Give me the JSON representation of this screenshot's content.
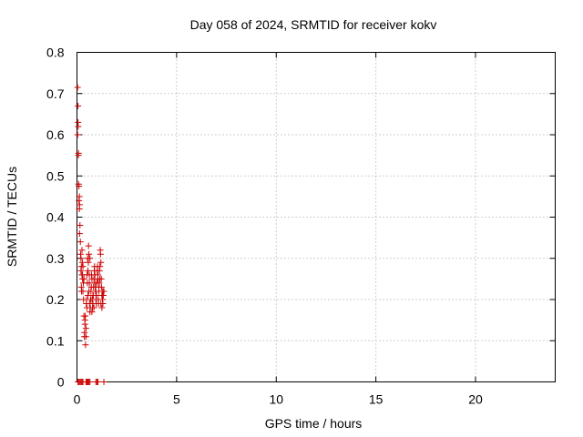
{
  "chart_data": {
    "type": "scatter",
    "title": "Day 058 of 2024, SRMTID for receiver kokv",
    "xlabel": "GPS time / hours",
    "ylabel": "SRMTID / TECUs",
    "xlim": [
      0,
      24
    ],
    "ylim": [
      0,
      0.8
    ],
    "xticks": [
      0,
      5,
      10,
      15,
      20
    ],
    "yticks": [
      0,
      0.1,
      0.2,
      0.3,
      0.4,
      0.5,
      0.6,
      0.7,
      0.8
    ],
    "xtick_labels": [
      "0",
      "5",
      "10",
      "15",
      "20"
    ],
    "ytick_labels": [
      "0",
      "0.1",
      "0.2",
      "0.3",
      "0.4",
      "0.5",
      "0.6",
      "0.7",
      "0.8"
    ],
    "grid": true,
    "marker": "+",
    "marker_color": "#cc0000",
    "series": [
      {
        "name": "SRMTID",
        "x": [
          0.03,
          0.05,
          0.06,
          0.08,
          0.1,
          0.12,
          0.13,
          0.15,
          0.17,
          0.18,
          0.2,
          0.22,
          0.23,
          0.25,
          0.27,
          0.28,
          0.3,
          0.32,
          0.33,
          0.35,
          0.37,
          0.38,
          0.4,
          0.42,
          0.43,
          0.45,
          0.47,
          0.48,
          0.5,
          0.52,
          0.53,
          0.55,
          0.57,
          0.58,
          0.6,
          0.62,
          0.63,
          0.65,
          0.67,
          0.68,
          0.7,
          0.72,
          0.73,
          0.75,
          0.77,
          0.78,
          0.8,
          0.82,
          0.83,
          0.85,
          0.87,
          0.88,
          0.9,
          0.92,
          0.93,
          0.95,
          0.97,
          0.98,
          1.0,
          1.02,
          1.03,
          1.05,
          1.07,
          1.08,
          1.1,
          1.12,
          1.13,
          1.15,
          1.17,
          1.18,
          1.2,
          1.22,
          1.23,
          1.25,
          1.27,
          1.28,
          1.3,
          1.32,
          1.33,
          1.35,
          0.03,
          0.05,
          0.07,
          0.08,
          0.1,
          0.12,
          0.13,
          0.2,
          0.22,
          0.25,
          0.28,
          0.3,
          0.35,
          0.4,
          0.45,
          0.5,
          0.55,
          0.6,
          0.62,
          0.65,
          0.7,
          0.75,
          0.8,
          0.85,
          0.9,
          0.95,
          1.0,
          1.05,
          1.1,
          1.15,
          1.2,
          1.25,
          1.3,
          0.05,
          0.1,
          0.15,
          0.2,
          0.25,
          0.3,
          0.45,
          0.5,
          0.55,
          0.6,
          0.65,
          0.95,
          1.0,
          1.05,
          1.35
        ],
        "y": [
          0.715,
          0.67,
          0.62,
          0.555,
          0.475,
          0.45,
          0.43,
          0.38,
          0.34,
          0.31,
          0.27,
          0.23,
          0.22,
          0.26,
          0.29,
          0.25,
          0.28,
          0.24,
          0.2,
          0.16,
          0.11,
          0.12,
          0.14,
          0.16,
          0.09,
          0.11,
          0.19,
          0.2,
          0.26,
          0.24,
          0.3,
          0.27,
          0.29,
          0.33,
          0.31,
          0.24,
          0.19,
          0.17,
          0.18,
          0.2,
          0.22,
          0.23,
          0.26,
          0.25,
          0.2,
          0.18,
          0.19,
          0.21,
          0.23,
          0.25,
          0.27,
          0.28,
          0.26,
          0.23,
          0.22,
          0.2,
          0.19,
          0.21,
          0.24,
          0.27,
          0.28,
          0.25,
          0.2,
          0.19,
          0.22,
          0.24,
          0.27,
          0.28,
          0.32,
          0.31,
          0.29,
          0.25,
          0.23,
          0.21,
          0.22,
          0.2,
          0.19,
          0.21,
          0.22,
          0.22,
          0.6,
          0.63,
          0.55,
          0.48,
          0.44,
          0.42,
          0.36,
          0.3,
          0.28,
          0.32,
          0.26,
          0.22,
          0.25,
          0.15,
          0.13,
          0.18,
          0.21,
          0.22,
          0.26,
          0.3,
          0.2,
          0.17,
          0.21,
          0.18,
          0.24,
          0.22,
          0.24,
          0.26,
          0.23,
          0.25,
          0.19,
          0.18,
          0.21,
          0.0,
          0.0,
          0.0,
          0.0,
          0.0,
          0.0,
          0.0,
          0.0,
          0.0,
          0.0,
          0.0,
          0.0,
          0.0,
          0.0,
          0.0
        ]
      }
    ]
  }
}
